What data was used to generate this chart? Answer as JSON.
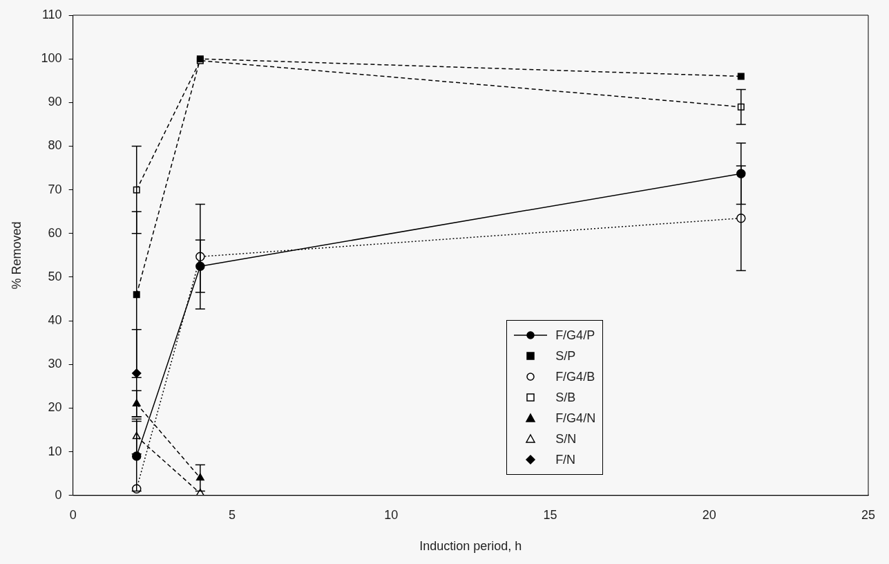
{
  "chart_data": {
    "type": "line",
    "xlabel": "Induction period, h",
    "ylabel": "% Removed",
    "x": [
      2,
      4,
      21
    ],
    "xlim": [
      0,
      25
    ],
    "xticks": [
      0,
      5,
      10,
      15,
      20,
      25
    ],
    "ylim": [
      0,
      110
    ],
    "yticks": [
      0,
      10,
      20,
      30,
      40,
      50,
      60,
      70,
      80,
      90,
      100,
      110
    ],
    "grid": false,
    "legend": "right",
    "series": [
      {
        "name": "F/G4/P",
        "color": "#000000",
        "marker": "circle",
        "line_style": "solid",
        "values": [
          9,
          52.5,
          73.7
        ],
        "errors": [
          8,
          6,
          7
        ]
      },
      {
        "name": "S/P",
        "color": "#000000",
        "marker": "square",
        "line_style": "dashed",
        "values": [
          46,
          100,
          96
        ],
        "errors": [
          19,
          null,
          null
        ]
      },
      {
        "name": "F/G4/B",
        "color": "#000000",
        "colors": [
          "#ffffff",
          "#ffffff",
          "#ffffff"
        ],
        "marker": "circle",
        "line_style": "dotted",
        "values": [
          1.5,
          54.7,
          63.5
        ],
        "errors": [
          null,
          12,
          12
        ]
      },
      {
        "name": "S/B",
        "color": "#000000",
        "colors": [
          "#ffffff",
          "#ffffff",
          "#ffffff"
        ],
        "marker": "square",
        "line_style": "dashed",
        "values": [
          70,
          99.6,
          89
        ],
        "errors": [
          10,
          null,
          4
        ]
      },
      {
        "name": "F/G4/N",
        "color": "#000000",
        "marker": "triangle",
        "line_style": "dashed",
        "values": [
          21,
          4,
          null
        ],
        "errors": [
          3,
          3,
          null
        ]
      },
      {
        "name": "S/N",
        "color": "#000000",
        "colors": [
          "#ffffff",
          "#ffffff",
          null
        ],
        "marker": "triangle",
        "line_style": "dashed",
        "values": [
          13.5,
          0.5,
          null
        ],
        "errors": [
          4,
          null,
          null
        ]
      },
      {
        "name": "F/N",
        "color": "#000000",
        "marker": "diamond",
        "values": [
          28,
          null,
          null
        ],
        "errors": [
          10,
          null,
          null
        ]
      }
    ]
  }
}
